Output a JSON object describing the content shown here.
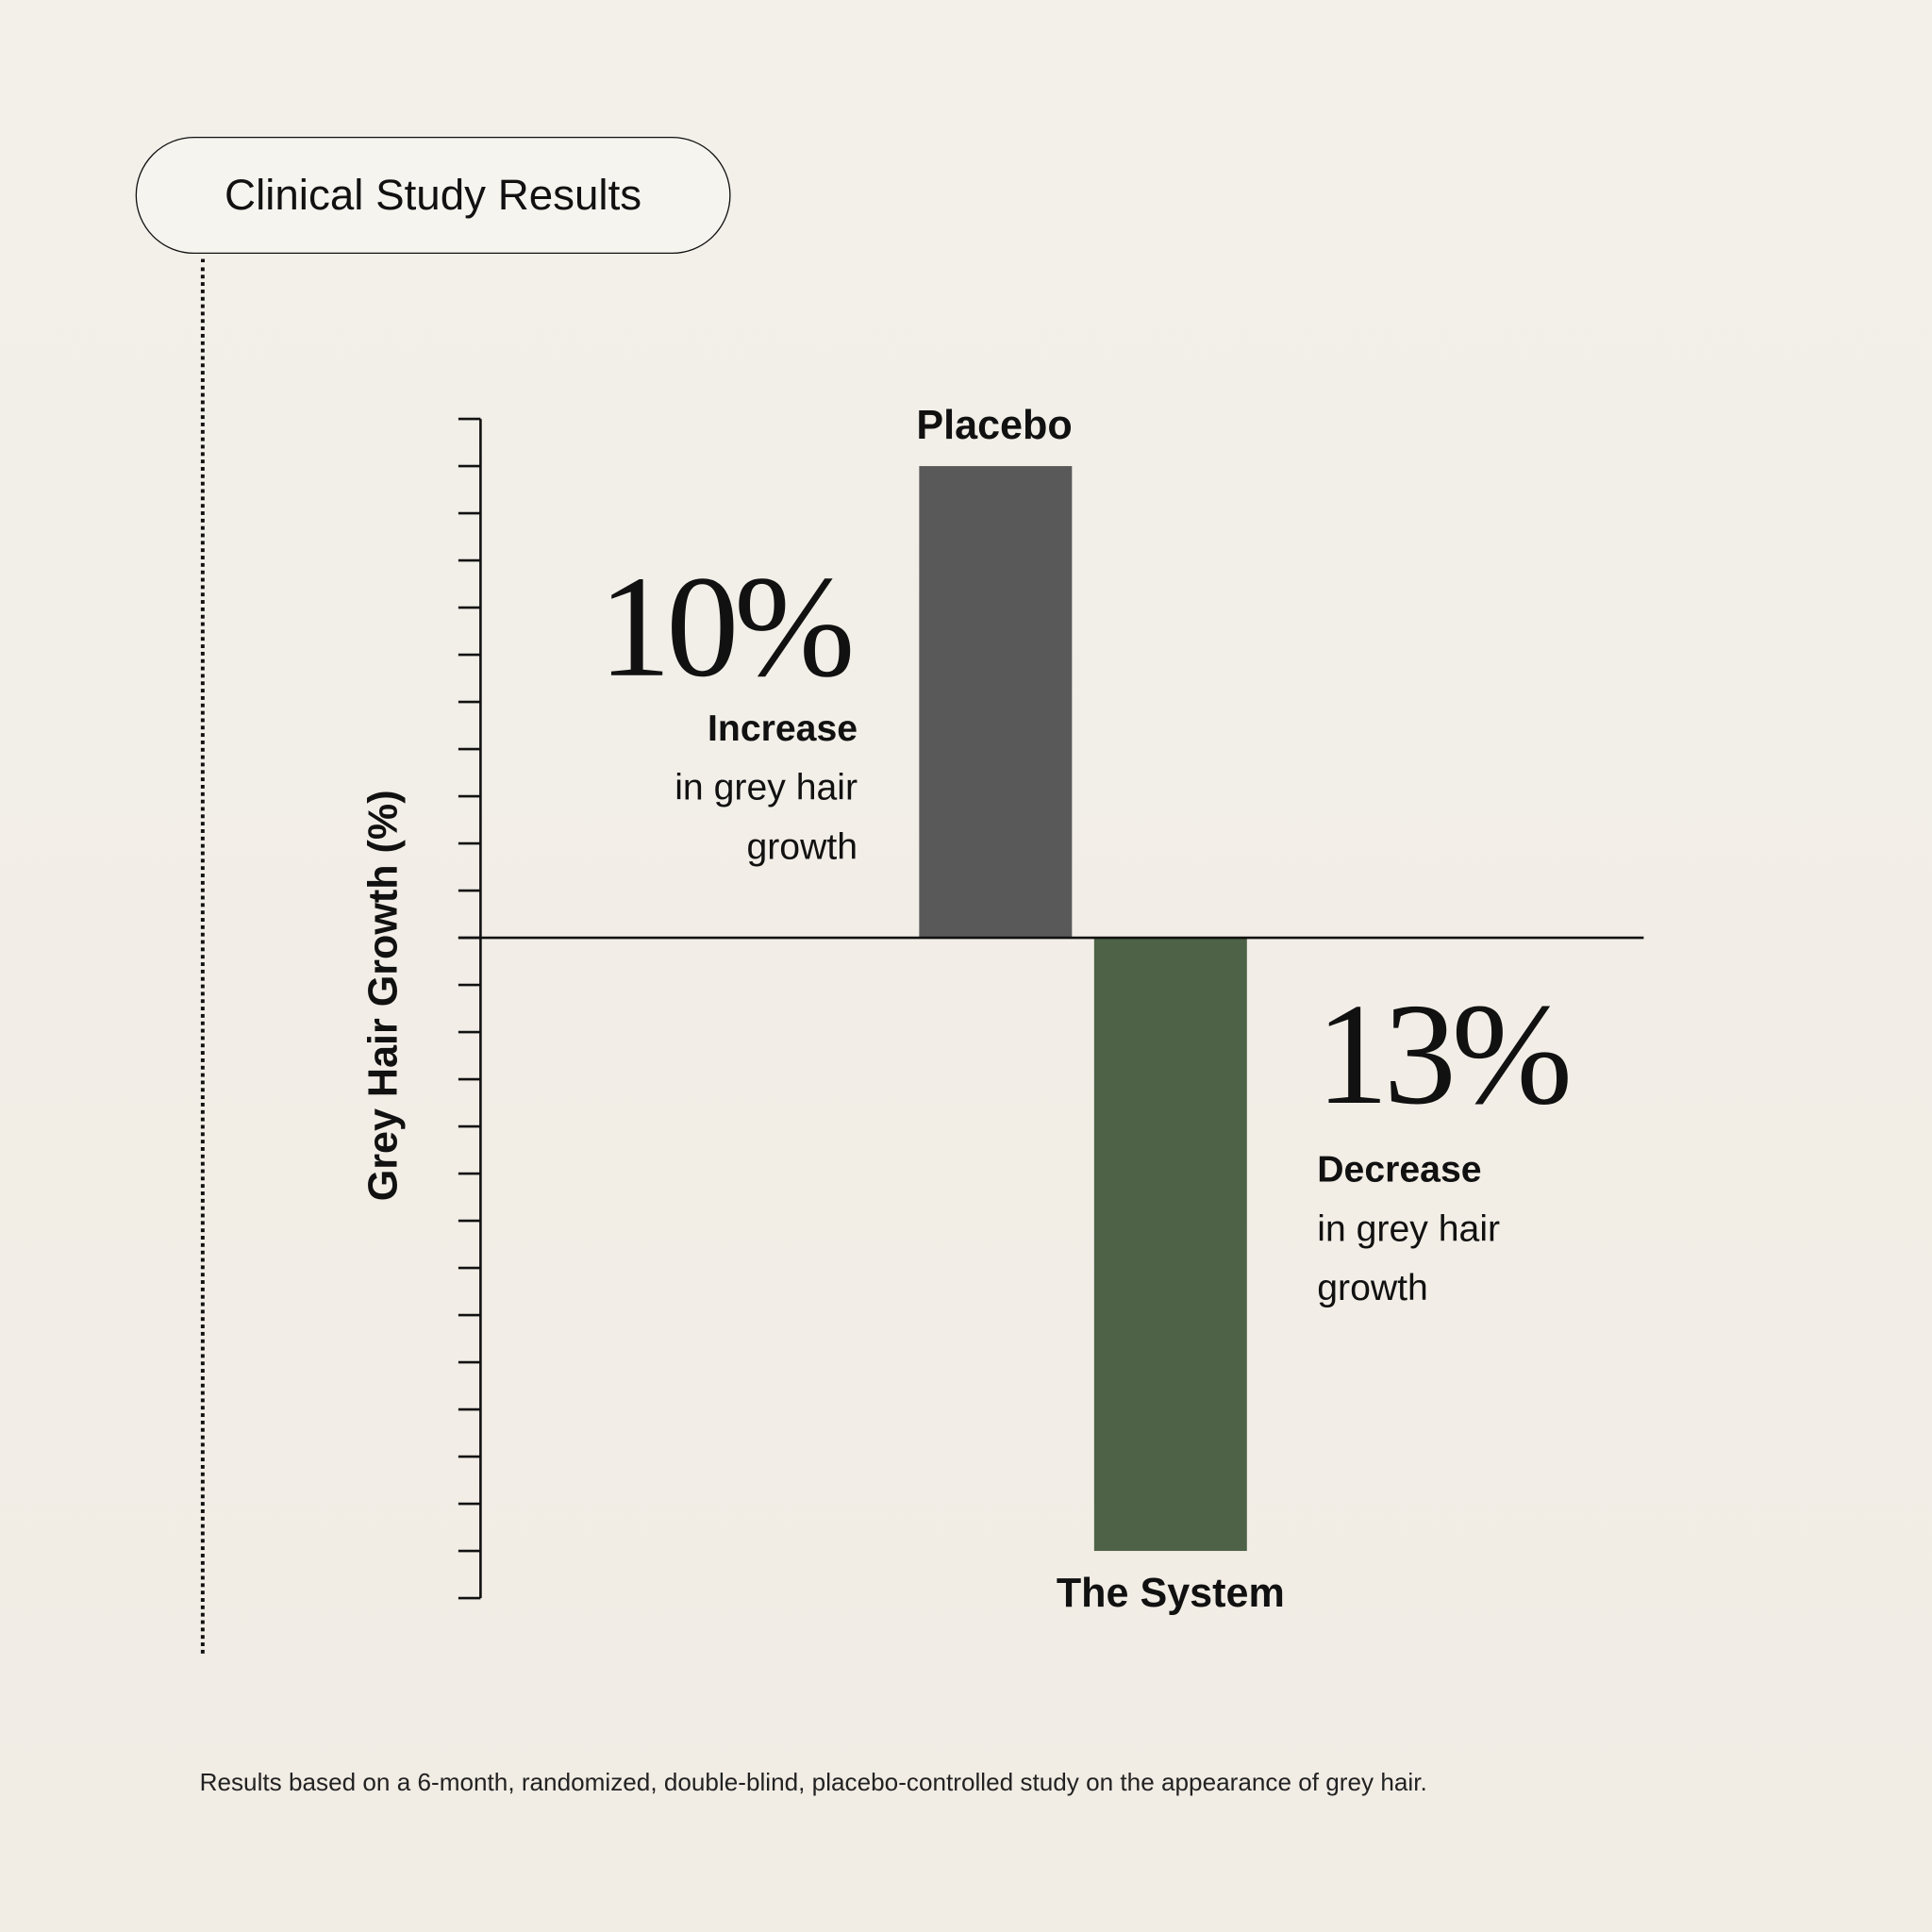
{
  "badge": "Clinical Study Results",
  "chart_data": {
    "type": "bar",
    "categories": [
      "Placebo",
      "The System"
    ],
    "values": [
      10,
      -13
    ],
    "colors": [
      "#595959",
      "#4d6246"
    ],
    "ylabel": "Grey Hair Growth (%)",
    "ylim": [
      -14,
      11
    ],
    "tick_step": 1,
    "grid": false,
    "annotations": [
      {
        "value": "10%",
        "headline": "Increase",
        "line1": "in grey hair",
        "line2": "growth"
      },
      {
        "value": "13%",
        "headline": "Decrease",
        "line1": "in grey hair",
        "line2": "growth"
      }
    ]
  },
  "footnote": "Results based on a 6-month, randomized, double-blind, placebo-controlled study on the appearance of grey hair."
}
